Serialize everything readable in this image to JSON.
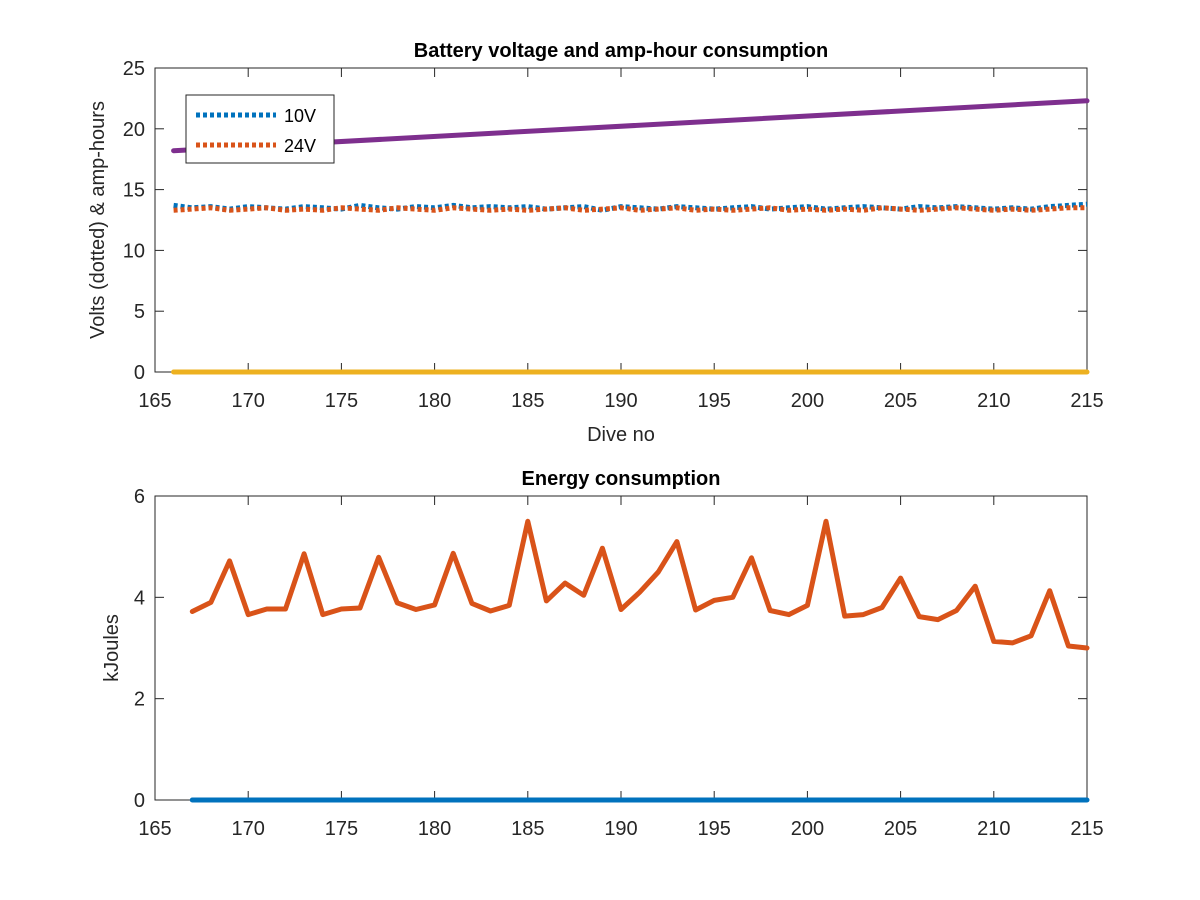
{
  "chart_data": [
    {
      "type": "line",
      "title": "Battery voltage and amp-hour consumption",
      "xlabel": "Dive no",
      "ylabel": "Volts (dotted) & amp-hours",
      "xlim": [
        165,
        215
      ],
      "ylim": [
        0,
        25
      ],
      "xticks": [
        "165",
        "170",
        "175",
        "180",
        "185",
        "190",
        "195",
        "200",
        "205",
        "210",
        "215"
      ],
      "yticks": [
        "0",
        "5",
        "10",
        "15",
        "20",
        "25"
      ],
      "grid": false,
      "legend_location": "top-left",
      "series": [
        {
          "name": "10V",
          "style": "dotted",
          "color": "#0072BD",
          "x": [
            166,
            167,
            168,
            169,
            170,
            171,
            172,
            173,
            174,
            175,
            176,
            177,
            178,
            179,
            180,
            181,
            182,
            183,
            184,
            185,
            186,
            187,
            188,
            189,
            190,
            191,
            192,
            193,
            194,
            195,
            196,
            197,
            198,
            199,
            200,
            201,
            202,
            203,
            204,
            205,
            206,
            207,
            208,
            209,
            210,
            211,
            212,
            213,
            214,
            215
          ],
          "y": [
            13.7,
            13.5,
            13.6,
            13.4,
            13.6,
            13.5,
            13.4,
            13.6,
            13.5,
            13.4,
            13.7,
            13.5,
            13.4,
            13.6,
            13.5,
            13.7,
            13.5,
            13.6,
            13.5,
            13.6,
            13.4,
            13.5,
            13.6,
            13.3,
            13.6,
            13.5,
            13.4,
            13.6,
            13.5,
            13.4,
            13.5,
            13.6,
            13.4,
            13.5,
            13.6,
            13.4,
            13.5,
            13.6,
            13.5,
            13.4,
            13.6,
            13.5,
            13.6,
            13.5,
            13.4,
            13.5,
            13.4,
            13.6,
            13.7,
            13.8
          ]
        },
        {
          "name": "24V",
          "style": "dotted",
          "color": "#D95319",
          "x": [
            166,
            167,
            168,
            169,
            170,
            171,
            172,
            173,
            174,
            175,
            176,
            177,
            178,
            179,
            180,
            181,
            182,
            183,
            184,
            185,
            186,
            187,
            188,
            189,
            190,
            191,
            192,
            193,
            194,
            195,
            196,
            197,
            198,
            199,
            200,
            201,
            202,
            203,
            204,
            205,
            206,
            207,
            208,
            209,
            210,
            211,
            212,
            213,
            214,
            215
          ],
          "y": [
            13.3,
            13.4,
            13.5,
            13.3,
            13.4,
            13.5,
            13.3,
            13.4,
            13.3,
            13.5,
            13.4,
            13.3,
            13.5,
            13.4,
            13.3,
            13.5,
            13.4,
            13.3,
            13.4,
            13.3,
            13.4,
            13.5,
            13.3,
            13.4,
            13.5,
            13.3,
            13.4,
            13.5,
            13.3,
            13.4,
            13.3,
            13.4,
            13.5,
            13.3,
            13.4,
            13.3,
            13.4,
            13.3,
            13.5,
            13.4,
            13.3,
            13.4,
            13.5,
            13.4,
            13.3,
            13.4,
            13.3,
            13.4,
            13.5,
            13.5
          ]
        },
        {
          "style": "solid",
          "color": "#EDB120",
          "x": [
            166,
            215
          ],
          "y": [
            0,
            0
          ]
        },
        {
          "style": "solid",
          "color": "#7E2F8E",
          "x": [
            166,
            215
          ],
          "y": [
            18.2,
            22.3
          ]
        }
      ]
    },
    {
      "type": "line",
      "title": "Energy consumption",
      "xlabel": "",
      "ylabel": "kJoules",
      "xlim": [
        165,
        215
      ],
      "ylim": [
        0,
        6
      ],
      "xticks": [
        "165",
        "170",
        "175",
        "180",
        "185",
        "190",
        "195",
        "200",
        "205",
        "210",
        "215"
      ],
      "yticks": [
        "0",
        "2",
        "4",
        "6"
      ],
      "grid": false,
      "series": [
        {
          "style": "solid",
          "color": "#D95319",
          "x": [
            167,
            168,
            169,
            170,
            171,
            172,
            173,
            174,
            175,
            176,
            177,
            178,
            179,
            180,
            181,
            182,
            183,
            184,
            185,
            186,
            187,
            188,
            189,
            190,
            191,
            192,
            193,
            194,
            195,
            196,
            197,
            198,
            199,
            200,
            201,
            202,
            203,
            204,
            205,
            206,
            207,
            208,
            209,
            210,
            211,
            212,
            213,
            214,
            215
          ],
          "y": [
            3.72,
            3.9,
            4.72,
            3.66,
            3.77,
            3.77,
            4.86,
            3.66,
            3.77,
            3.79,
            4.79,
            3.89,
            3.76,
            3.85,
            4.87,
            3.88,
            3.73,
            3.84,
            5.5,
            3.93,
            4.28,
            4.04,
            4.97,
            3.76,
            4.1,
            4.5,
            5.1,
            3.75,
            3.94,
            4.0,
            4.78,
            3.74,
            3.66,
            3.84,
            5.5,
            3.63,
            3.66,
            3.8,
            4.38,
            3.62,
            3.56,
            3.74,
            4.22,
            3.13,
            3.1,
            3.24,
            4.13,
            3.04,
            3.0
          ]
        },
        {
          "style": "solid",
          "color": "#0072BD",
          "x": [
            167,
            215
          ],
          "y": [
            0,
            0
          ]
        }
      ]
    }
  ]
}
